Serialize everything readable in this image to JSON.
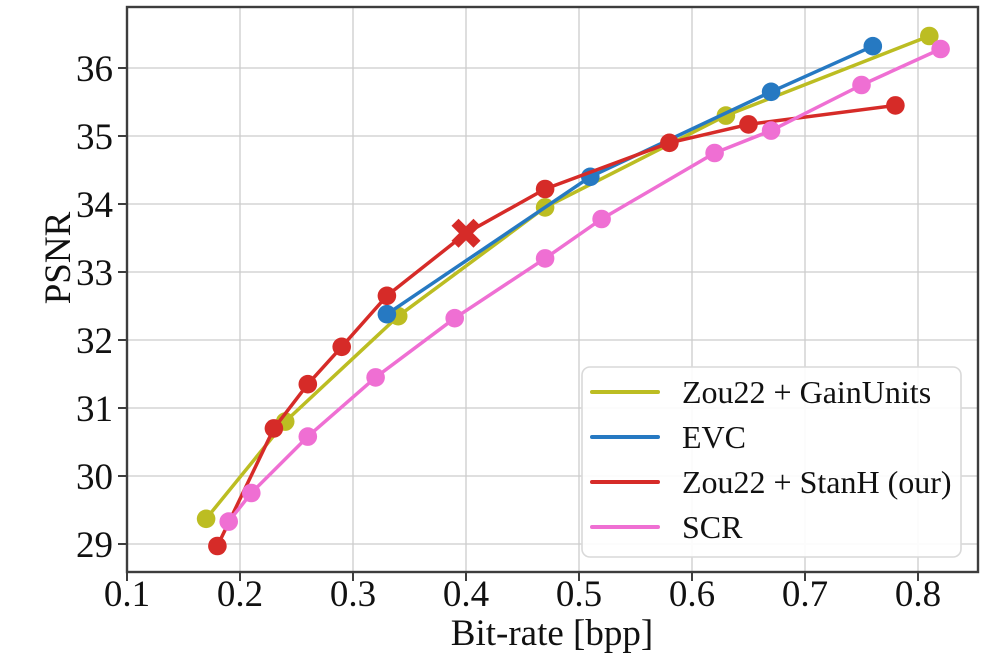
{
  "chart_data": {
    "type": "line",
    "title": "",
    "xlabel": "Bit-rate [bpp]",
    "ylabel": "PSNR",
    "xlim": [
      0.1,
      0.853
    ],
    "ylim": [
      28.6,
      36.9
    ],
    "xticks": [
      0.1,
      0.2,
      0.3,
      0.4,
      0.5,
      0.6,
      0.7,
      0.8
    ],
    "yticks": [
      29,
      30,
      31,
      32,
      33,
      34,
      35,
      36
    ],
    "grid": true,
    "legend_position": "lower right",
    "style": {
      "grid_color": "#cccccc",
      "spine_color": "#3d3d3d",
      "text_color": "#111111",
      "background": "#ffffff",
      "legend_border": "#d9d9d9"
    },
    "series": [
      {
        "name": "Zou22 + GainUnits",
        "color": "#bcbd22",
        "marker": "circle",
        "points": [
          [
            0.17,
            29.37
          ],
          [
            0.24,
            30.8
          ],
          [
            0.34,
            32.35
          ],
          [
            0.47,
            33.95
          ],
          [
            0.63,
            35.3
          ],
          [
            0.81,
            36.47
          ]
        ]
      },
      {
        "name": "EVC",
        "color": "#2679c2",
        "marker": "circle",
        "points": [
          [
            0.33,
            32.38
          ],
          [
            0.51,
            34.4
          ],
          [
            0.67,
            35.65
          ],
          [
            0.76,
            36.32
          ]
        ]
      },
      {
        "name": "Zou22 + StanH (our)",
        "color": "#d62b28",
        "marker": "circle",
        "points": [
          [
            0.18,
            28.97
          ],
          [
            0.23,
            30.7
          ],
          [
            0.26,
            31.35
          ],
          [
            0.29,
            31.9
          ],
          [
            0.33,
            32.65
          ],
          [
            0.4,
            33.57
          ],
          [
            0.47,
            34.22
          ],
          [
            0.58,
            34.9
          ],
          [
            0.65,
            35.17
          ],
          [
            0.78,
            35.45
          ]
        ],
        "highlight_marker": {
          "point": [
            0.4,
            33.57
          ],
          "shape": "X"
        }
      },
      {
        "name": "SCR",
        "color": "#ef6fd3",
        "marker": "circle",
        "points": [
          [
            0.19,
            29.33
          ],
          [
            0.21,
            29.75
          ],
          [
            0.26,
            30.58
          ],
          [
            0.32,
            31.45
          ],
          [
            0.39,
            32.32
          ],
          [
            0.47,
            33.2
          ],
          [
            0.52,
            33.78
          ],
          [
            0.62,
            34.75
          ],
          [
            0.67,
            35.08
          ],
          [
            0.75,
            35.75
          ],
          [
            0.82,
            36.28
          ]
        ]
      }
    ]
  }
}
